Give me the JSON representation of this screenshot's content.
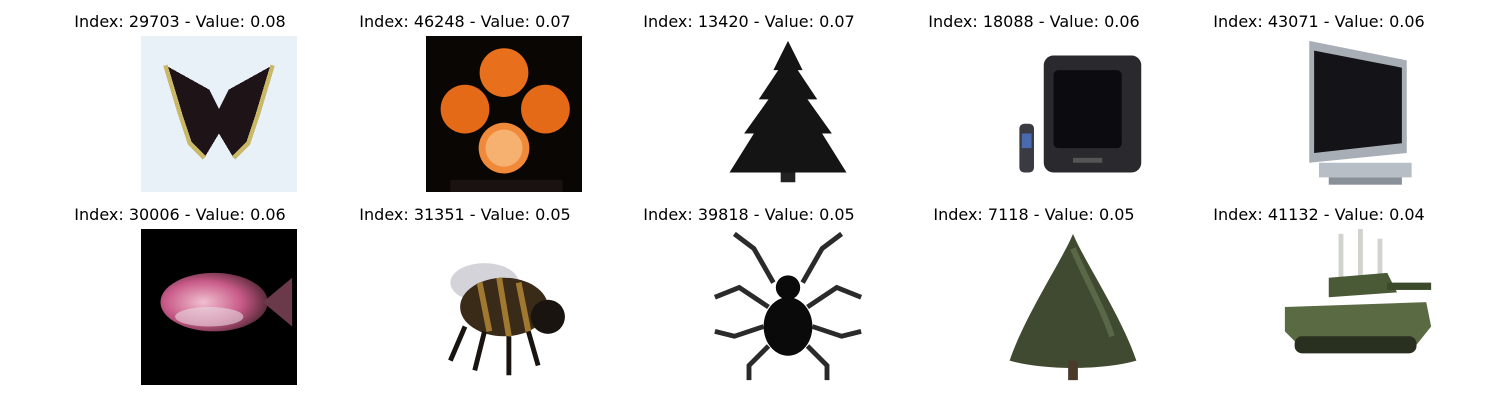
{
  "grid": [
    {
      "title": "Index: 29703 - Value: 0.08",
      "icon": "butterfly-icon",
      "bg": "#e8f0f8"
    },
    {
      "title": "Index: 46248 - Value: 0.07",
      "icon": "oranges-icon",
      "bg": "#0a0604"
    },
    {
      "title": "Index: 13420 - Value: 0.07",
      "icon": "pine-tree-icon",
      "bg": "#ffffff"
    },
    {
      "title": "Index: 18088 - Value: 0.06",
      "icon": "crt-television-icon",
      "bg": "#ffffff"
    },
    {
      "title": "Index: 43071 - Value: 0.06",
      "icon": "flat-tv-icon",
      "bg": "#ffffff"
    },
    {
      "title": "Index: 30006 - Value: 0.06",
      "icon": "fish-icon",
      "bg": "#000000"
    },
    {
      "title": "Index: 31351 - Value: 0.05",
      "icon": "bee-icon",
      "bg": "#ffffff"
    },
    {
      "title": "Index: 39818 - Value: 0.05",
      "icon": "spider-icon",
      "bg": "#ffffff"
    },
    {
      "title": "Index: 7118 - Value: 0.05",
      "icon": "cone-tree-icon",
      "bg": "#ffffff"
    },
    {
      "title": "Index: 41132 - Value: 0.04",
      "icon": "tank-icon",
      "bg": "#ffffff"
    }
  ]
}
